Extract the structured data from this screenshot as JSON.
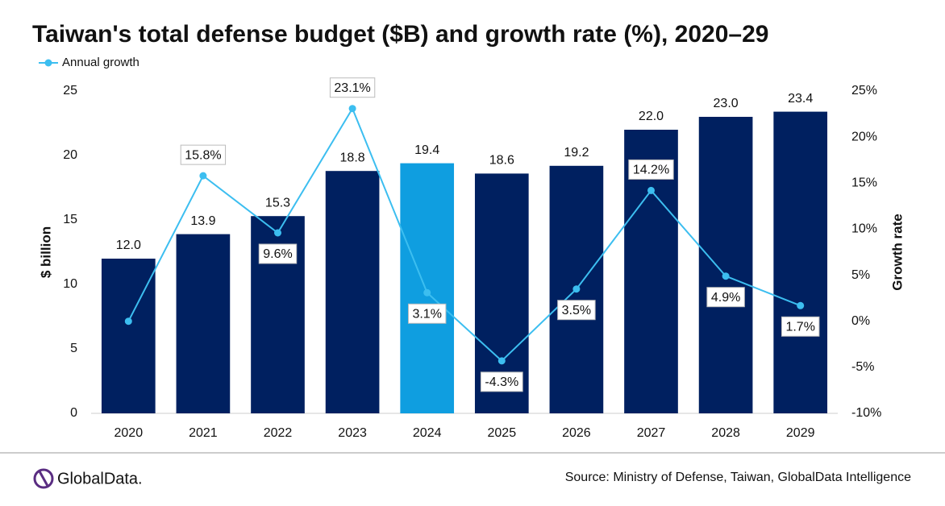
{
  "chart_data": {
    "type": "bar",
    "title": "Taiwan's total defense budget ($B) and growth rate (%), 2020–29",
    "y_label": "$ billion",
    "y2_label": "Growth rate",
    "categories": [
      "2020",
      "2021",
      "2022",
      "2023",
      "2024",
      "2025",
      "2026",
      "2027",
      "2028",
      "2029"
    ],
    "series": [
      {
        "type": "bar",
        "colors": [
          "#002060",
          "#002060",
          "#002060",
          "#002060",
          "#0f9ee0",
          "#002060",
          "#002060",
          "#002060",
          "#002060",
          "#002060"
        ],
        "values": [
          12.0,
          13.9,
          15.3,
          18.8,
          19.4,
          18.6,
          19.2,
          22.0,
          23.0,
          23.4
        ],
        "value_labels": [
          "12.0",
          "13.9",
          "15.3",
          "18.8",
          "19.4",
          "18.6",
          "19.2",
          "22.0",
          "23.0",
          "23.4"
        ]
      },
      {
        "type": "line",
        "name": "Annual growth",
        "color": "#3cbef0",
        "axis": "y2",
        "values": [
          0,
          15.8,
          9.6,
          23.1,
          3.1,
          -4.3,
          3.5,
          14.2,
          4.9,
          1.7
        ],
        "value_labels": [
          null,
          "15.8%",
          "9.6%",
          "23.1%",
          "3.1%",
          "-4.3%",
          "3.5%",
          "14.2%",
          "4.9%",
          "1.7%"
        ]
      }
    ],
    "ylim": [
      0,
      25
    ],
    "yticks": [
      0,
      5,
      10,
      15,
      20,
      25
    ],
    "y2lim": [
      -10,
      25
    ],
    "y2ticks": [
      {
        "value": -10,
        "label": "-10%"
      },
      {
        "value": -5,
        "label": "-5%"
      },
      {
        "value": 0,
        "label": "0%"
      },
      {
        "value": 5,
        "label": "5%"
      },
      {
        "value": 10,
        "label": "10%"
      },
      {
        "value": 15,
        "label": "15%"
      },
      {
        "value": 20,
        "label": "20%"
      },
      {
        "value": 25,
        "label": "25%"
      }
    ],
    "grid": false,
    "legend": "top-left"
  },
  "footer": {
    "logo": "GlobalData.",
    "source": "Source: Ministry of Defense, Taiwan, GlobalData Intelligence"
  }
}
